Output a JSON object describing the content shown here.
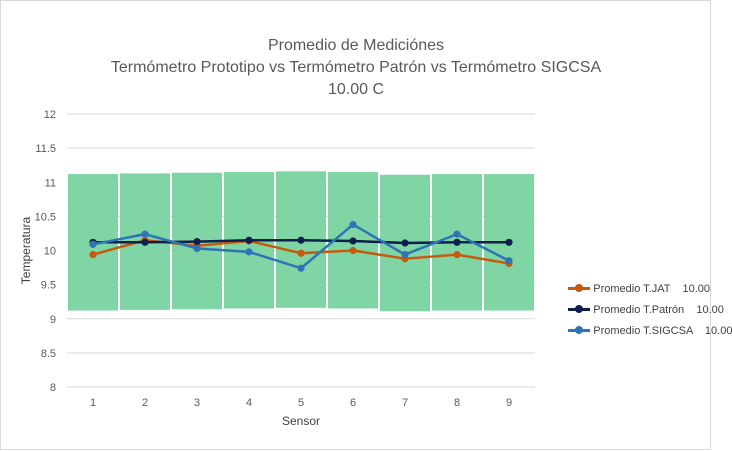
{
  "chart_data": {
    "type": "line",
    "title_lines": [
      "Promedio de Mediciónes",
      "Termómetro Prototipo vs Termómetro Patrón vs Termómetro SIGCSA",
      "10.00 C"
    ],
    "xlabel": "Sensor",
    "ylabel": "Temperatura",
    "x": [
      1,
      2,
      3,
      4,
      5,
      6,
      7,
      8,
      9
    ],
    "ylim": [
      8,
      12
    ],
    "yticks": [
      8,
      8.5,
      9,
      9.5,
      10,
      10.5,
      11,
      11.5,
      12
    ],
    "ytick_labels": [
      "8",
      "8.5",
      "9",
      "9.5",
      "10",
      "10.5",
      "11",
      "11.5",
      "12"
    ],
    "grid": true,
    "legend_position": "right",
    "tolerance_band": {
      "color": "#7fd6a4",
      "upper": [
        11.12,
        11.13,
        11.14,
        11.15,
        11.16,
        11.15,
        11.11,
        11.12,
        11.12
      ],
      "lower": [
        9.12,
        9.13,
        9.14,
        9.15,
        9.16,
        9.15,
        9.11,
        9.12,
        9.12
      ]
    },
    "series": [
      {
        "name": "Promedio T.JAT    10.00",
        "color": "#c55a11",
        "values": [
          9.94,
          10.15,
          10.07,
          10.14,
          9.96,
          10.0,
          9.88,
          9.94,
          9.81
        ]
      },
      {
        "name": "Promedio T.Patrón    10.00",
        "color": "#0d1f4d",
        "values": [
          10.12,
          10.12,
          10.13,
          10.15,
          10.15,
          10.14,
          10.11,
          10.12,
          10.12
        ]
      },
      {
        "name": "Promedio T.SIGCSA    10.00",
        "color": "#2e75b6",
        "values": [
          10.09,
          10.24,
          10.03,
          9.98,
          9.74,
          10.38,
          9.94,
          10.24,
          9.85
        ]
      }
    ]
  }
}
